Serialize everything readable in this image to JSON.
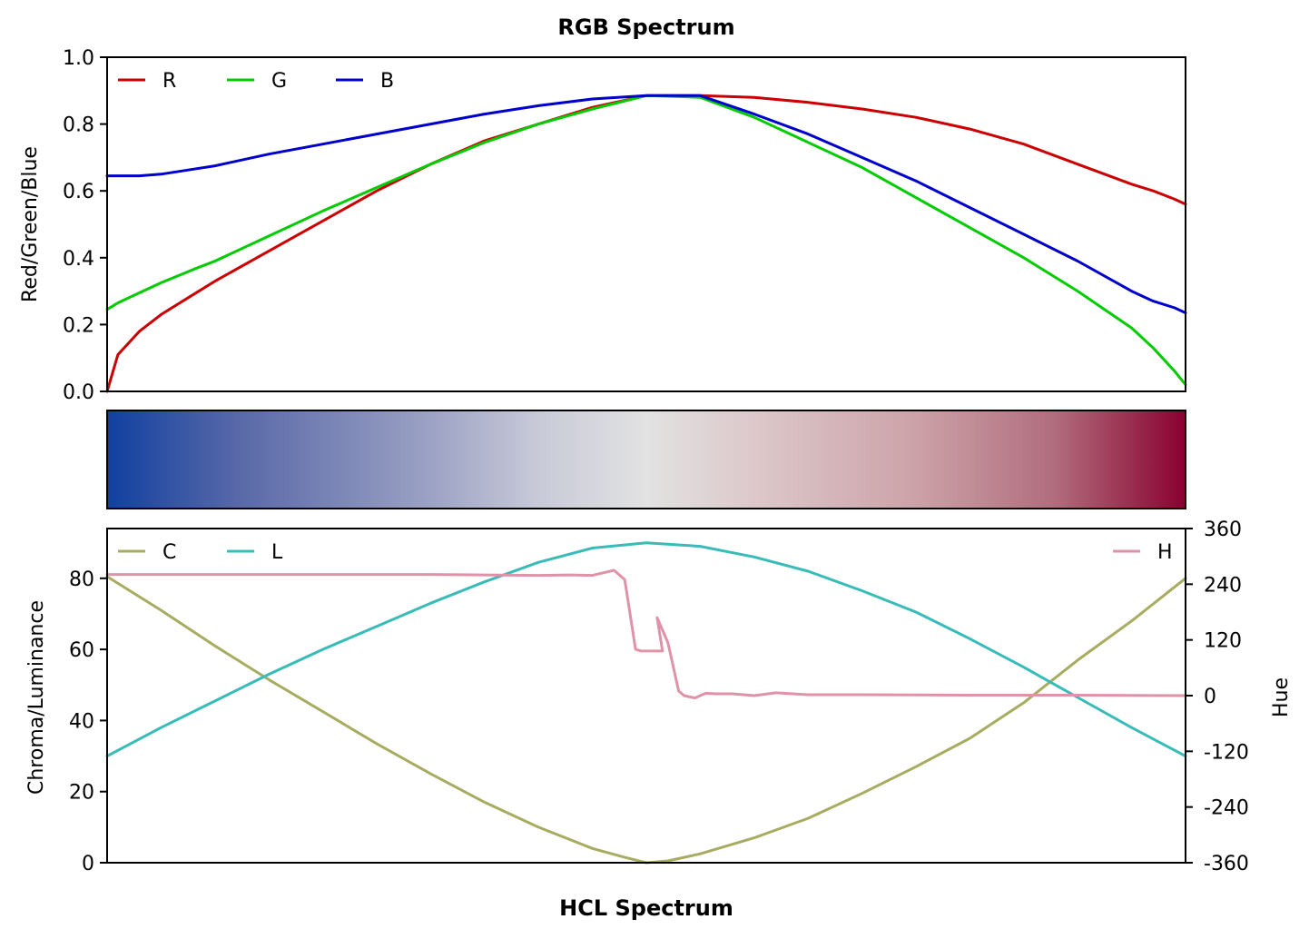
{
  "chart_data": [
    {
      "type": "line",
      "title": "RGB Spectrum",
      "ylabel": "Red/Green/Blue",
      "xlim": [
        0,
        1
      ],
      "ylim": [
        0,
        1
      ],
      "yticks": [
        "0.0",
        "0.2",
        "0.4",
        "0.6",
        "0.8",
        "1.0"
      ],
      "ytick_values": [
        0,
        0.2,
        0.4,
        0.6,
        0.8,
        1.0
      ],
      "legend": "upper-left",
      "x": [
        0,
        0.01,
        0.03,
        0.05,
        0.08,
        0.1,
        0.15,
        0.2,
        0.25,
        0.3,
        0.35,
        0.4,
        0.45,
        0.5,
        0.55,
        0.6,
        0.65,
        0.7,
        0.75,
        0.8,
        0.85,
        0.9,
        0.95,
        0.97,
        0.99,
        1.0
      ],
      "series": [
        {
          "name": "R",
          "color": "#cc0000",
          "values": [
            0.0,
            0.11,
            0.18,
            0.23,
            0.29,
            0.33,
            0.42,
            0.51,
            0.6,
            0.68,
            0.75,
            0.8,
            0.85,
            0.885,
            0.885,
            0.88,
            0.865,
            0.845,
            0.82,
            0.785,
            0.74,
            0.68,
            0.62,
            0.6,
            0.575,
            0.56
          ]
        },
        {
          "name": "G",
          "color": "#00cc00",
          "values": [
            0.245,
            0.265,
            0.295,
            0.325,
            0.365,
            0.39,
            0.465,
            0.54,
            0.61,
            0.68,
            0.745,
            0.8,
            0.845,
            0.885,
            0.88,
            0.82,
            0.745,
            0.67,
            0.58,
            0.49,
            0.4,
            0.3,
            0.19,
            0.13,
            0.06,
            0.02
          ]
        },
        {
          "name": "B",
          "color": "#0000cc",
          "values": [
            0.645,
            0.645,
            0.645,
            0.65,
            0.665,
            0.675,
            0.71,
            0.74,
            0.77,
            0.8,
            0.83,
            0.855,
            0.875,
            0.885,
            0.885,
            0.83,
            0.77,
            0.7,
            0.63,
            0.55,
            0.47,
            0.39,
            0.3,
            0.27,
            0.25,
            0.235
          ]
        }
      ]
    },
    {
      "type": "heatmap",
      "description_colors": [
        "#1040a0",
        "#5868a8",
        "#9ca2c4",
        "#c8cad8",
        "#e2e2e2",
        "#dcc8ca",
        "#cca2a8",
        "#b06c7c",
        "#8a0030"
      ],
      "stops": [
        0,
        0.12,
        0.3,
        0.4,
        0.5,
        0.6,
        0.75,
        0.88,
        1.0
      ]
    },
    {
      "type": "line",
      "title": "HCL Spectrum",
      "ylabel": "Chroma/Luminance",
      "ylabel_right": "Hue",
      "xlim": [
        0,
        1
      ],
      "ylim": [
        0,
        94
      ],
      "yticks": [
        "0",
        "20",
        "40",
        "60",
        "80"
      ],
      "ytick_values": [
        0,
        20,
        40,
        60,
        80
      ],
      "ylim_right": [
        -360,
        360
      ],
      "yticks_right": [
        "360",
        "240",
        "120",
        "0",
        "-120",
        "-240",
        "-360"
      ],
      "ytick_values_right": [
        360,
        240,
        120,
        0,
        -120,
        -240,
        -360
      ],
      "legend_left": "upper-left",
      "legend_right": "upper-right",
      "series": [
        {
          "name": "C",
          "color": "#a8ac60",
          "axis": "left",
          "x": [
            0,
            0.05,
            0.1,
            0.15,
            0.2,
            0.25,
            0.3,
            0.35,
            0.4,
            0.45,
            0.48,
            0.5,
            0.52,
            0.55,
            0.6,
            0.65,
            0.7,
            0.75,
            0.8,
            0.85,
            0.9,
            0.95,
            1.0
          ],
          "values": [
            80.5,
            71,
            61,
            51.5,
            42.5,
            33.5,
            25,
            17,
            10,
            4,
            1.5,
            0,
            0.5,
            2.5,
            7,
            12.5,
            19.5,
            27,
            35,
            45,
            57,
            68,
            80
          ]
        },
        {
          "name": "L",
          "color": "#38bcb8",
          "axis": "left",
          "x": [
            0,
            0.05,
            0.1,
            0.15,
            0.2,
            0.25,
            0.3,
            0.35,
            0.4,
            0.45,
            0.5,
            0.55,
            0.6,
            0.65,
            0.7,
            0.75,
            0.8,
            0.85,
            0.9,
            0.95,
            1.0
          ],
          "values": [
            30,
            38,
            45.5,
            53,
            60,
            66.5,
            73,
            79,
            84.5,
            88.5,
            90,
            89,
            86,
            82,
            76.5,
            70.5,
            63,
            55,
            46.5,
            38,
            30
          ]
        },
        {
          "name": "H",
          "color": "#e092a8",
          "axis": "right",
          "x": [
            0,
            0.1,
            0.2,
            0.3,
            0.35,
            0.4,
            0.43,
            0.45,
            0.47,
            0.48,
            0.49,
            0.495,
            0.505,
            0.515,
            0.51,
            0.52,
            0.53,
            0.535,
            0.545,
            0.555,
            0.565,
            0.58,
            0.6,
            0.62,
            0.65,
            0.7,
            0.8,
            0.9,
            1.0
          ],
          "values": [
            261,
            261,
            261,
            261,
            260,
            259,
            260,
            259,
            270,
            250,
            100,
            96,
            96,
            96,
            168,
            114,
            10,
            0,
            -5,
            5,
            4,
            4,
            0,
            6,
            2,
            2,
            1,
            1,
            0
          ]
        }
      ]
    }
  ]
}
